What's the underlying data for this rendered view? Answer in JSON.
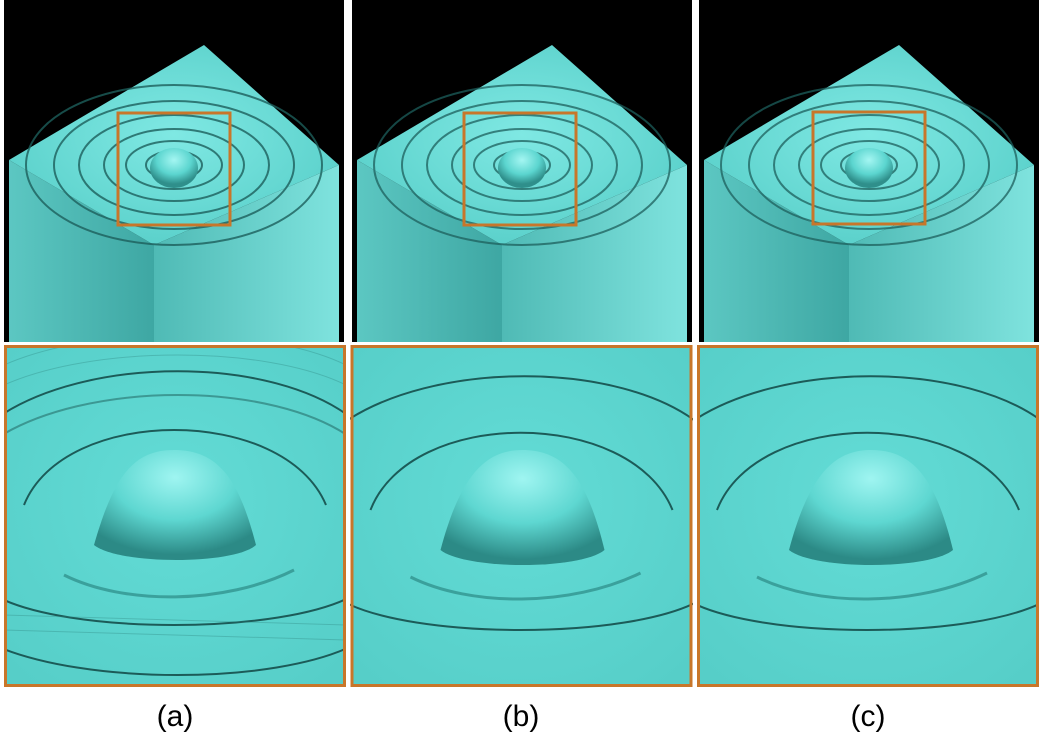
{
  "colors": {
    "surface": "#5fd8d2",
    "highlight": "#aef9f6",
    "shadow": "#1f6f6c",
    "background": "#000000",
    "zoom_box": "#c8762a"
  },
  "panels": [
    {
      "caption": "(a)"
    },
    {
      "caption": "(b)"
    },
    {
      "caption": "(c)"
    }
  ]
}
